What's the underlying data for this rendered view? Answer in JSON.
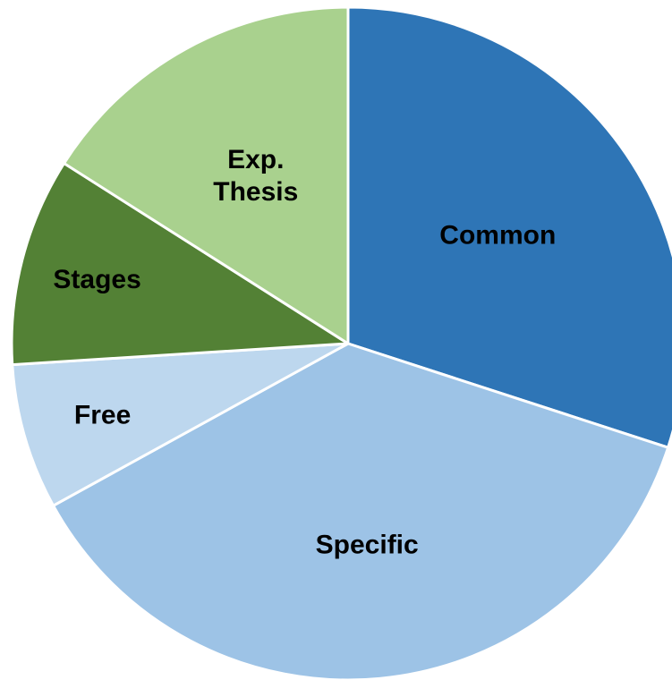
{
  "chart_data": {
    "type": "pie",
    "slices": [
      {
        "label": [
          "Common"
        ],
        "value": 30.0,
        "color": "#2e75b6"
      },
      {
        "label": [
          "Specific"
        ],
        "value": 37.0,
        "color": "#9dc3e6"
      },
      {
        "label": [
          "Free"
        ],
        "value": 7.0,
        "color": "#bdd7ee"
      },
      {
        "label": [
          "Stages"
        ],
        "value": 10.0,
        "color": "#538135"
      },
      {
        "label": [
          "Exp.",
          "Thesis"
        ],
        "value": 16.0,
        "color": "#a9d18e"
      }
    ],
    "start": "12 o'clock",
    "direction": "clockwise",
    "legend": "none"
  }
}
